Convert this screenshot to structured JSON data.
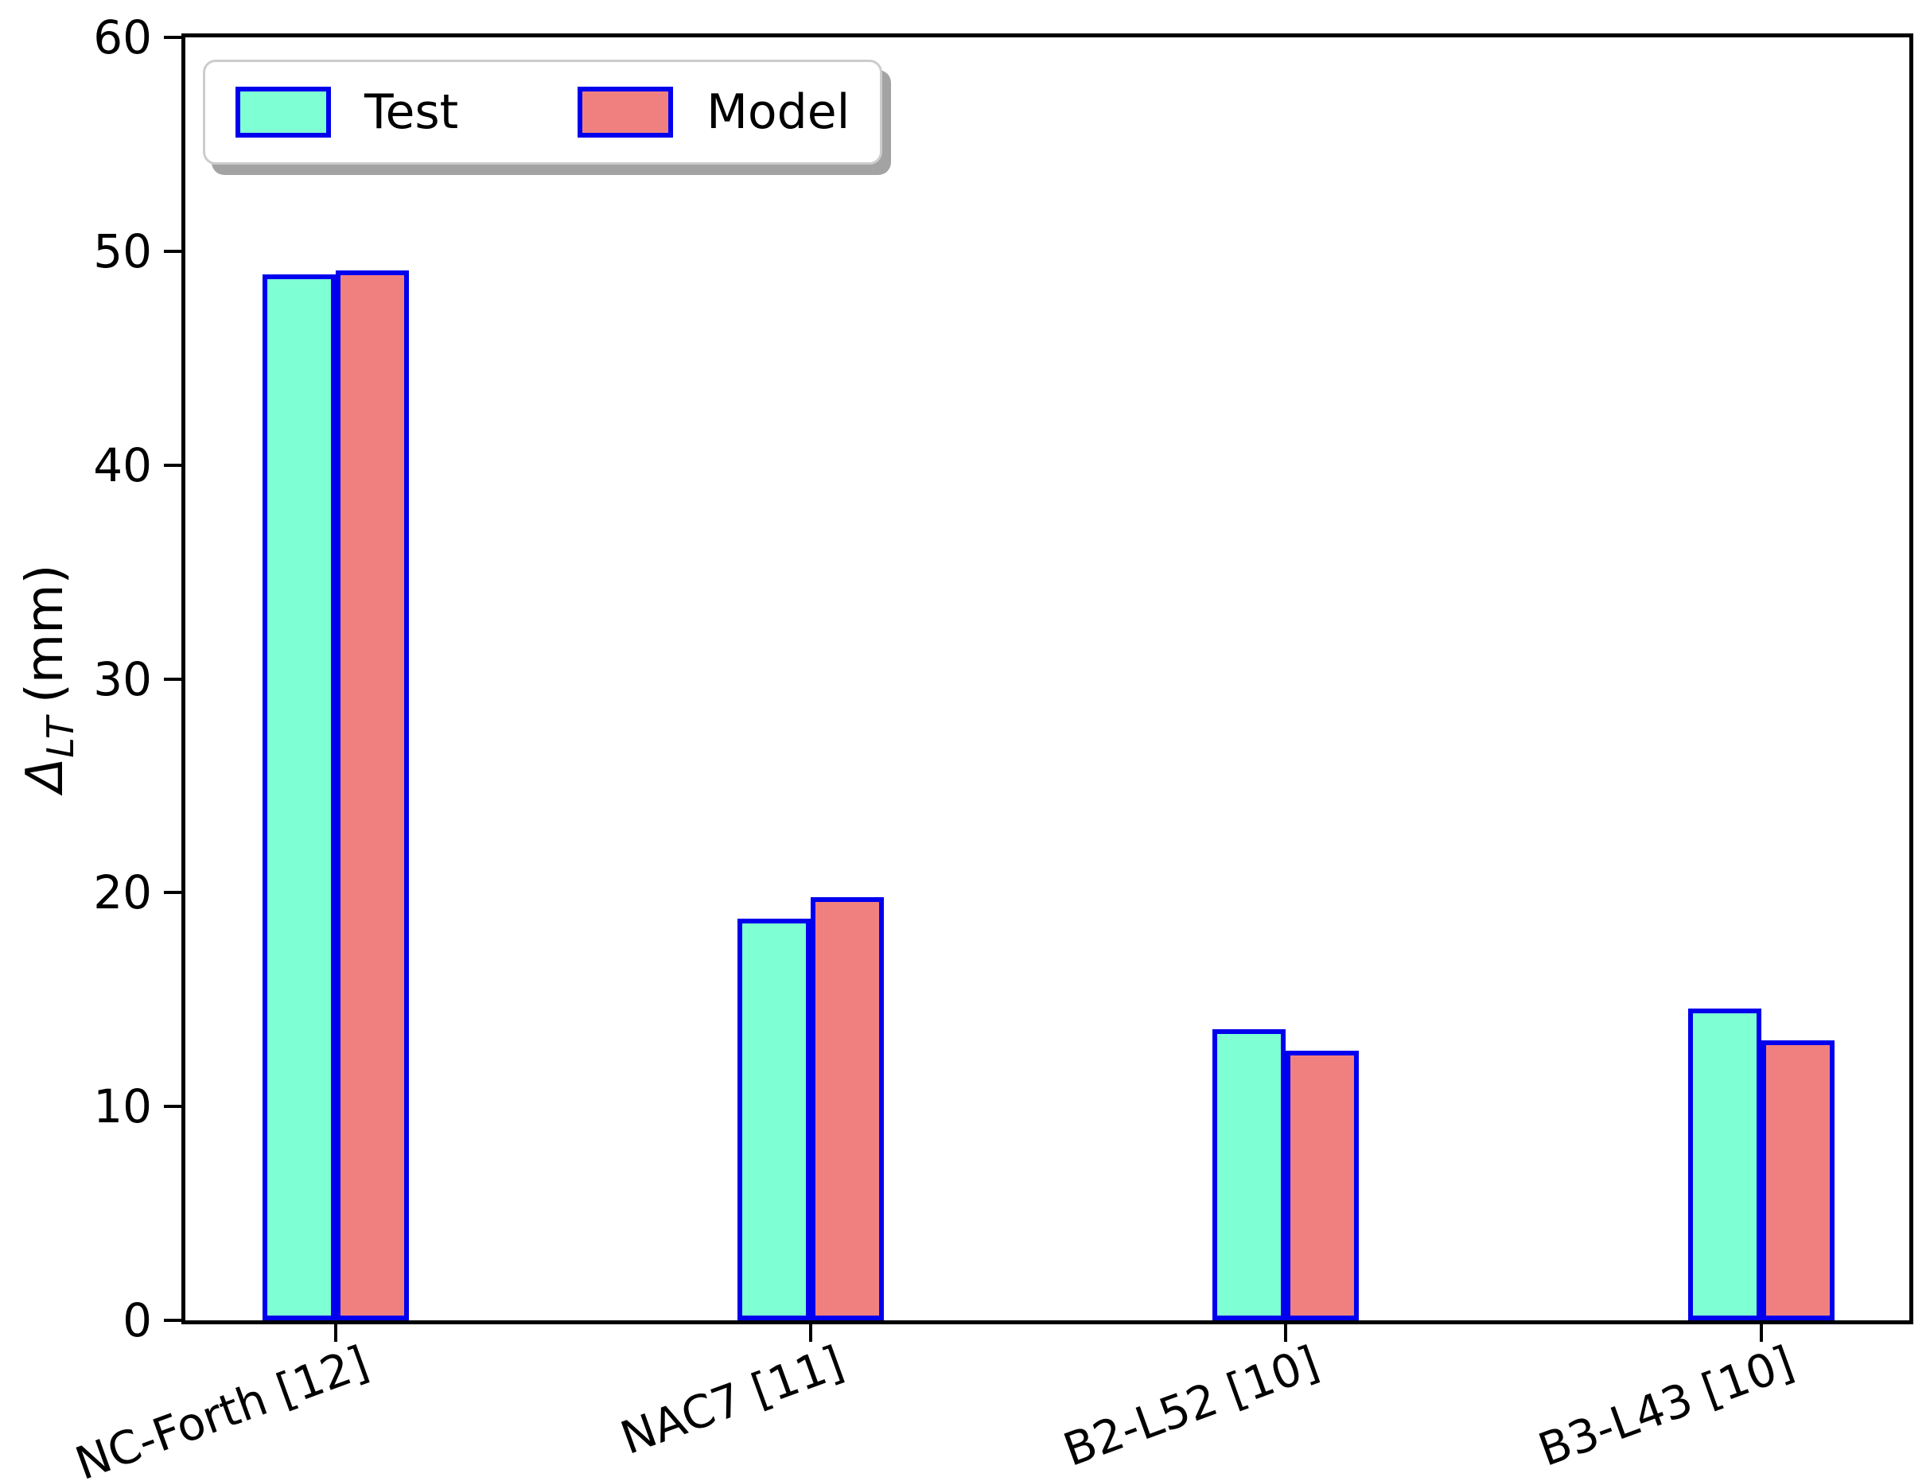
{
  "chart_data": {
    "type": "bar",
    "title": "",
    "categories": [
      "NC-Forth [12]",
      "NAC7 [11]",
      "B2-L52 [10]",
      "B3-L43 [10]"
    ],
    "series": [
      {
        "name": "Test",
        "fill_color": "#7FFFD4",
        "values": [
          48.9,
          18.8,
          13.6,
          14.6
        ]
      },
      {
        "name": "Model",
        "fill_color": "#F08080",
        "values": [
          49.1,
          19.8,
          12.6,
          13.1
        ]
      }
    ],
    "bar_edge_color": "#0000ee",
    "ylabel": {
      "symbol": "Δ",
      "subscript": "LT",
      "unit": "(mm)"
    },
    "xlabel": "",
    "ylim": [
      0,
      60
    ],
    "yticks": [
      0,
      10,
      20,
      30,
      40,
      50,
      60
    ],
    "grid": "off",
    "x_tick_rotation_deg": 20,
    "legend": {
      "position": "upper-left",
      "labels": [
        "Test",
        "Model"
      ]
    }
  }
}
